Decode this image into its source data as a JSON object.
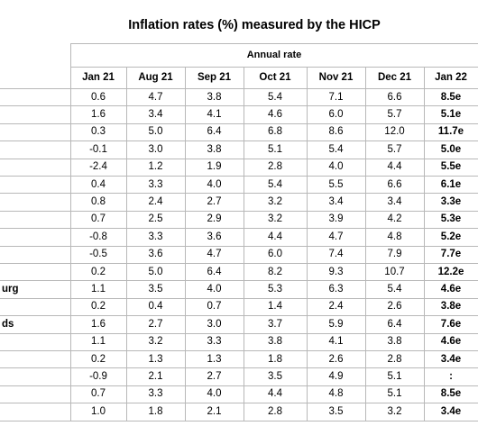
{
  "header": {
    "title": "Inflation rates (%) measured by the HICP",
    "group": "Annual rate"
  },
  "table": {
    "columns": [
      "Jan 21",
      "Aug 21",
      "Sep 21",
      "Oct 21",
      "Nov 21",
      "Dec 21",
      "Jan 22"
    ],
    "labels": [
      null,
      null,
      null,
      null,
      null,
      null,
      null,
      null,
      null,
      null,
      null,
      "urg",
      null,
      "ds",
      null,
      null,
      null,
      null,
      null
    ],
    "rows": [
      [
        "0.6",
        "4.7",
        "3.8",
        "5.4",
        "7.1",
        "6.6",
        "8.5e"
      ],
      [
        "1.6",
        "3.4",
        "4.1",
        "4.6",
        "6.0",
        "5.7",
        "5.1e"
      ],
      [
        "0.3",
        "5.0",
        "6.4",
        "6.8",
        "8.6",
        "12.0",
        "11.7e"
      ],
      [
        "-0.1",
        "3.0",
        "3.8",
        "5.1",
        "5.4",
        "5.7",
        "5.0e"
      ],
      [
        "-2.4",
        "1.2",
        "1.9",
        "2.8",
        "4.0",
        "4.4",
        "5.5e"
      ],
      [
        "0.4",
        "3.3",
        "4.0",
        "5.4",
        "5.5",
        "6.6",
        "6.1e"
      ],
      [
        "0.8",
        "2.4",
        "2.7",
        "3.2",
        "3.4",
        "3.4",
        "3.3e"
      ],
      [
        "0.7",
        "2.5",
        "2.9",
        "3.2",
        "3.9",
        "4.2",
        "5.3e"
      ],
      [
        "-0.8",
        "3.3",
        "3.6",
        "4.4",
        "4.7",
        "4.8",
        "5.2e"
      ],
      [
        "-0.5",
        "3.6",
        "4.7",
        "6.0",
        "7.4",
        "7.9",
        "7.7e"
      ],
      [
        "0.2",
        "5.0",
        "6.4",
        "8.2",
        "9.3",
        "10.7",
        "12.2e"
      ],
      [
        "1.1",
        "3.5",
        "4.0",
        "5.3",
        "6.3",
        "5.4",
        "4.6e"
      ],
      [
        "0.2",
        "0.4",
        "0.7",
        "1.4",
        "2.4",
        "2.6",
        "3.8e"
      ],
      [
        "1.6",
        "2.7",
        "3.0",
        "3.7",
        "5.9",
        "6.4",
        "7.6e"
      ],
      [
        "1.1",
        "3.2",
        "3.3",
        "3.8",
        "4.1",
        "3.8",
        "4.6e"
      ],
      [
        "0.2",
        "1.3",
        "1.3",
        "1.8",
        "2.6",
        "2.8",
        "3.4e"
      ],
      [
        "-0.9",
        "2.1",
        "2.7",
        "3.5",
        "4.9",
        "5.1",
        ":"
      ],
      [
        "0.7",
        "3.3",
        "4.0",
        "4.4",
        "4.8",
        "5.1",
        "8.5e"
      ],
      [
        "1.0",
        "1.8",
        "2.1",
        "2.8",
        "3.5",
        "3.2",
        "3.4e"
      ]
    ]
  }
}
